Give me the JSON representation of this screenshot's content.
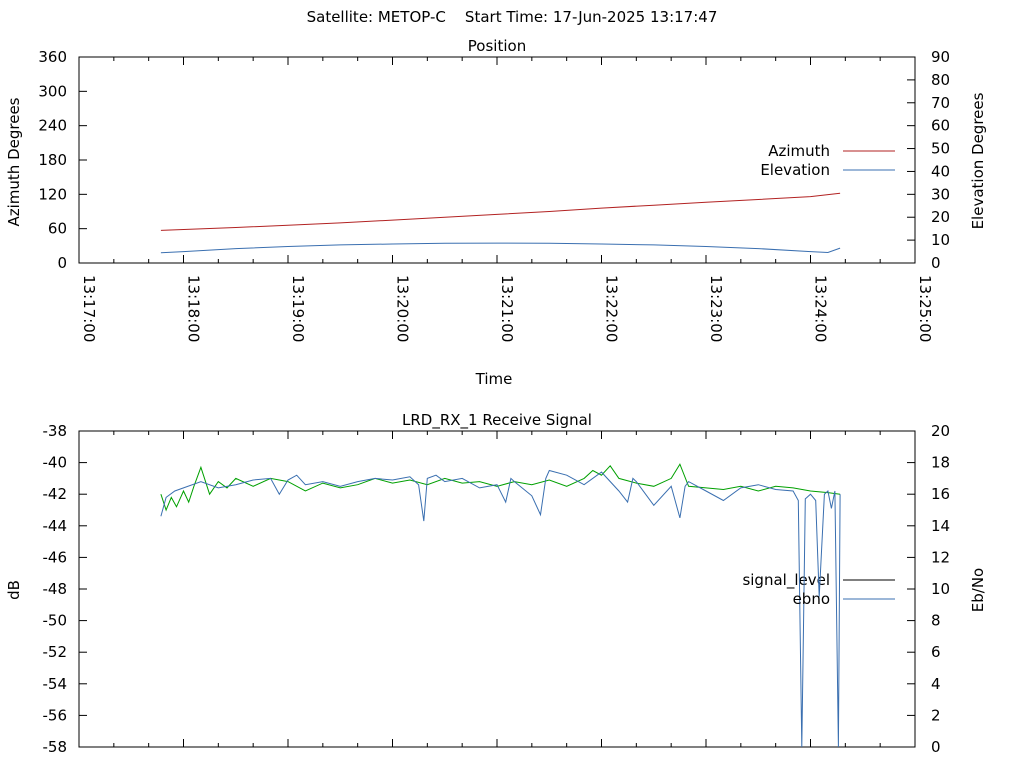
{
  "header": "Satellite: METOP-C    Start Time: 17-Jun-2025 13:17:47",
  "chart_data": [
    {
      "type": "line",
      "title": "Position",
      "xlabel": "Time",
      "ylabel": "Azimuth Degrees",
      "y2label": "Elevation Degrees",
      "xlim": [
        "13:17:00",
        "13:25:00"
      ],
      "xticks": [
        "13:17:00",
        "13:18:00",
        "13:19:00",
        "13:20:00",
        "13:21:00",
        "13:22:00",
        "13:23:00",
        "13:24:00",
        "13:25:00"
      ],
      "ylim": [
        0,
        360
      ],
      "yticks": [
        "0",
        "60",
        "120",
        "180",
        "240",
        "300",
        "360"
      ],
      "y2lim": [
        0,
        90
      ],
      "y2ticks": [
        "0",
        "10",
        "20",
        "30",
        "40",
        "50",
        "60",
        "70",
        "80",
        "90"
      ],
      "legend_position": "right",
      "series": [
        {
          "name": "Azimuth",
          "axis": "y",
          "color": "#b22222",
          "x": [
            "13:17:47",
            "13:18:30",
            "13:19:00",
            "13:19:30",
            "13:20:00",
            "13:20:30",
            "13:21:00",
            "13:21:30",
            "13:22:00",
            "13:22:30",
            "13:23:00",
            "13:23:30",
            "13:24:00",
            "13:24:17"
          ],
          "values": [
            57,
            62,
            66,
            70,
            75,
            80,
            85,
            90,
            96,
            101,
            106,
            111,
            116,
            122
          ]
        },
        {
          "name": "Elevation",
          "axis": "y2",
          "color": "#3a6fb0",
          "x": [
            "13:17:47",
            "13:18:00",
            "13:18:30",
            "13:19:00",
            "13:19:30",
            "13:20:00",
            "13:20:30",
            "13:21:00",
            "13:21:30",
            "13:22:00",
            "13:22:30",
            "13:23:00",
            "13:23:30",
            "13:24:00",
            "13:24:10",
            "13:24:17"
          ],
          "values": [
            4.5,
            5,
            6.3,
            7.2,
            7.9,
            8.3,
            8.6,
            8.7,
            8.6,
            8.3,
            7.9,
            7.2,
            6.3,
            5.0,
            4.6,
            6.5
          ]
        }
      ]
    },
    {
      "type": "line",
      "title": "LRD_RX_1 Receive Signal",
      "ylabel": "dB",
      "y2label": "Eb/No",
      "xlim": [
        "13:17:00",
        "13:25:00"
      ],
      "ylim": [
        -58,
        -38
      ],
      "yticks": [
        "-58",
        "-56",
        "-54",
        "-52",
        "-50",
        "-48",
        "-46",
        "-44",
        "-42",
        "-40",
        "-38"
      ],
      "y2lim": [
        0,
        20
      ],
      "y2ticks": [
        "0",
        "2",
        "4",
        "6",
        "8",
        "10",
        "12",
        "14",
        "16",
        "18",
        "20"
      ],
      "legend_position": "right",
      "series": [
        {
          "name": "signal_level",
          "axis": "y",
          "color": "#000000",
          "display_color": "#00a000",
          "x": [
            "13:17:47",
            "13:17:50",
            "13:17:53",
            "13:17:56",
            "13:18:00",
            "13:18:03",
            "13:18:06",
            "13:18:10",
            "13:18:15",
            "13:18:20",
            "13:18:25",
            "13:18:30",
            "13:18:40",
            "13:18:50",
            "13:19:00",
            "13:19:10",
            "13:19:20",
            "13:19:30",
            "13:19:40",
            "13:19:50",
            "13:20:00",
            "13:20:10",
            "13:20:20",
            "13:20:30",
            "13:20:40",
            "13:20:50",
            "13:21:00",
            "13:21:10",
            "13:21:20",
            "13:21:30",
            "13:21:40",
            "13:21:50",
            "13:21:55",
            "13:22:00",
            "13:22:05",
            "13:22:10",
            "13:22:20",
            "13:22:30",
            "13:22:40",
            "13:22:45",
            "13:22:50",
            "13:23:00",
            "13:23:10",
            "13:23:20",
            "13:23:30",
            "13:23:40",
            "13:23:50",
            "13:24:00",
            "13:24:10",
            "13:24:17"
          ],
          "values": [
            -42.0,
            -43.0,
            -42.2,
            -42.8,
            -41.8,
            -42.5,
            -41.5,
            -40.3,
            -42.0,
            -41.2,
            -41.6,
            -41.0,
            -41.5,
            -41.0,
            -41.2,
            -41.8,
            -41.3,
            -41.6,
            -41.4,
            -41.0,
            -41.3,
            -41.1,
            -41.4,
            -41.0,
            -41.3,
            -41.2,
            -41.5,
            -41.2,
            -41.4,
            -41.1,
            -41.5,
            -41.0,
            -40.5,
            -40.8,
            -40.2,
            -41.0,
            -41.3,
            -41.5,
            -41.0,
            -40.1,
            -41.5,
            -41.6,
            -41.7,
            -41.5,
            -41.8,
            -41.5,
            -41.6,
            -41.8,
            -41.9,
            -42.0
          ]
        },
        {
          "name": "ebno",
          "axis": "y2",
          "color": "#3a6fb0",
          "x": [
            "13:17:47",
            "13:17:50",
            "13:17:55",
            "13:18:00",
            "13:18:10",
            "13:18:20",
            "13:18:30",
            "13:18:40",
            "13:18:50",
            "13:18:55",
            "13:19:00",
            "13:19:05",
            "13:19:10",
            "13:19:20",
            "13:19:30",
            "13:19:40",
            "13:19:50",
            "13:20:00",
            "13:20:10",
            "13:20:15",
            "13:20:18",
            "13:20:20",
            "13:20:25",
            "13:20:30",
            "13:20:40",
            "13:20:50",
            "13:21:00",
            "13:21:05",
            "13:21:08",
            "13:21:10",
            "13:21:20",
            "13:21:25",
            "13:21:28",
            "13:21:30",
            "13:21:40",
            "13:21:50",
            "13:22:00",
            "13:22:10",
            "13:22:15",
            "13:22:18",
            "13:22:20",
            "13:22:30",
            "13:22:40",
            "13:22:45",
            "13:22:48",
            "13:22:50",
            "13:23:00",
            "13:23:10",
            "13:23:20",
            "13:23:30",
            "13:23:40",
            "13:23:50",
            "13:23:53",
            "13:23:55",
            "13:23:57",
            "13:24:00",
            "13:24:03",
            "13:24:05",
            "13:24:08",
            "13:24:10",
            "13:24:12",
            "13:24:14",
            "13:24:16",
            "13:24:17"
          ],
          "values": [
            14.6,
            15.8,
            16.2,
            16.4,
            16.8,
            16.4,
            16.6,
            16.9,
            17.0,
            16.0,
            16.9,
            17.2,
            16.6,
            16.8,
            16.5,
            16.8,
            17.0,
            16.9,
            17.1,
            16.6,
            14.3,
            17.0,
            17.2,
            16.8,
            17.0,
            16.4,
            16.6,
            15.5,
            17.0,
            16.8,
            15.9,
            14.7,
            17.0,
            17.5,
            17.2,
            16.6,
            17.4,
            16.2,
            15.5,
            17.0,
            16.8,
            15.3,
            16.5,
            14.5,
            16.5,
            16.8,
            16.2,
            15.6,
            16.4,
            16.6,
            16.3,
            16.2,
            15.6,
            0.0,
            15.7,
            16.0,
            15.6,
            9.5,
            16.0,
            16.2,
            15.1,
            16.2,
            0.0,
            16.0
          ]
        }
      ]
    }
  ]
}
